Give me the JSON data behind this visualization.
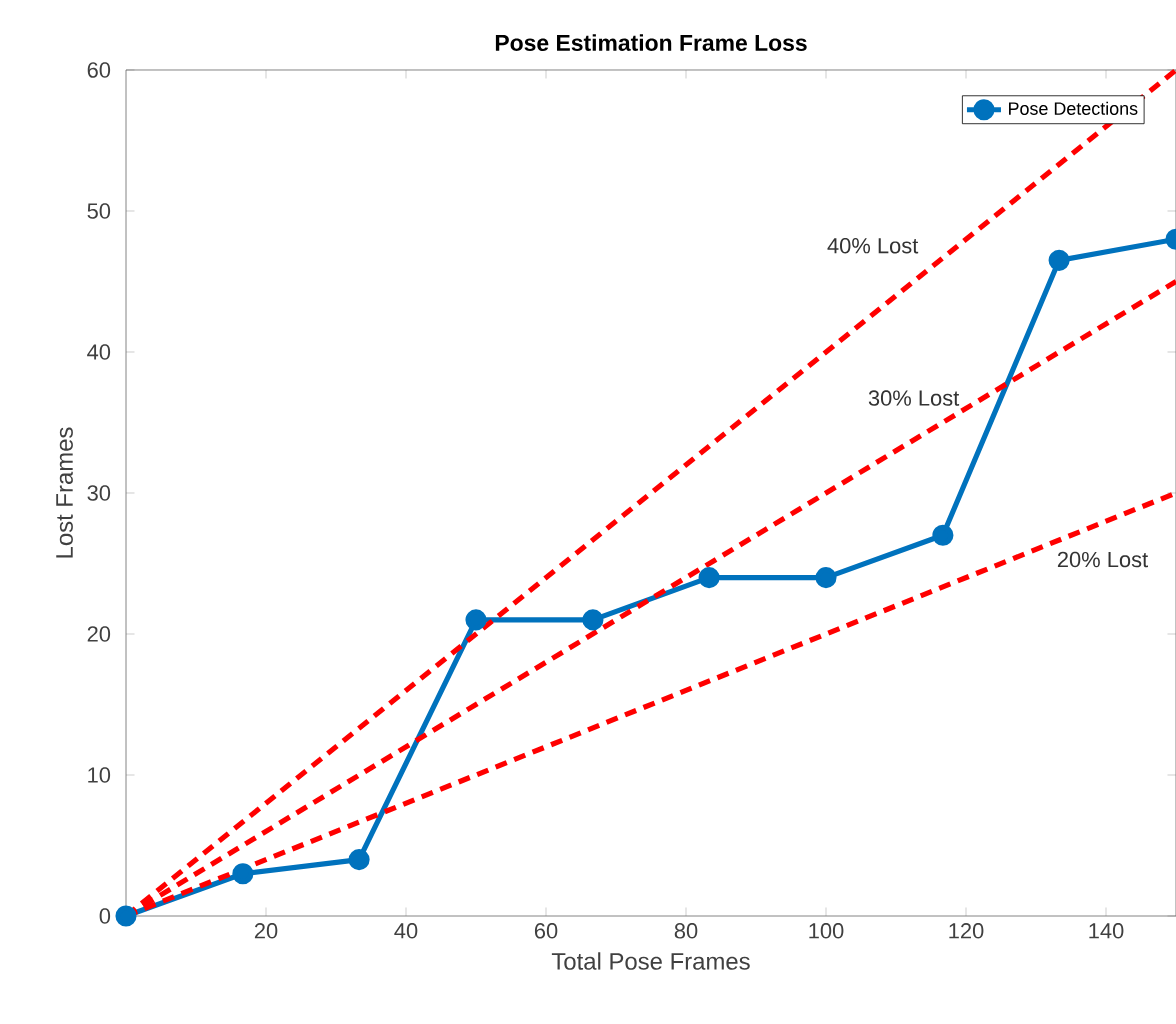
{
  "chart_data": {
    "type": "line",
    "title": "Pose Estimation Frame Loss",
    "xlabel": "Total Pose Frames",
    "ylabel": "Lost Frames",
    "xlim": [
      0,
      150
    ],
    "ylim": [
      0,
      60
    ],
    "xticks": [
      20,
      40,
      60,
      80,
      100,
      120,
      140
    ],
    "yticks": [
      0,
      10,
      20,
      30,
      40,
      50,
      60
    ],
    "legend": "top right",
    "grid": false,
    "series": [
      {
        "name": "Pose Detections",
        "color": "#0072bd",
        "marker": "circle",
        "line_style": "solid",
        "x": [
          0,
          16.7,
          33.3,
          50,
          66.7,
          83.3,
          100,
          116.7,
          133.3,
          150
        ],
        "values": [
          0,
          3,
          4,
          21,
          21,
          24,
          24,
          27,
          46.5,
          48
        ]
      },
      {
        "type": "line",
        "name": "40% Lost",
        "color": "#ff0000",
        "marker": "none",
        "line_style": "dashed",
        "x": [
          0,
          150
        ],
        "values": [
          0,
          60
        ]
      },
      {
        "type": "line",
        "name": "30% Lost",
        "color": "#ff0000",
        "marker": "none",
        "line_style": "dashed",
        "x": [
          0,
          150
        ],
        "values": [
          0,
          45
        ]
      },
      {
        "type": "line",
        "name": "20% Lost",
        "color": "#ff0000",
        "marker": "none",
        "line_style": "dashed",
        "x": [
          0,
          150
        ],
        "values": [
          0,
          30
        ]
      }
    ]
  }
}
